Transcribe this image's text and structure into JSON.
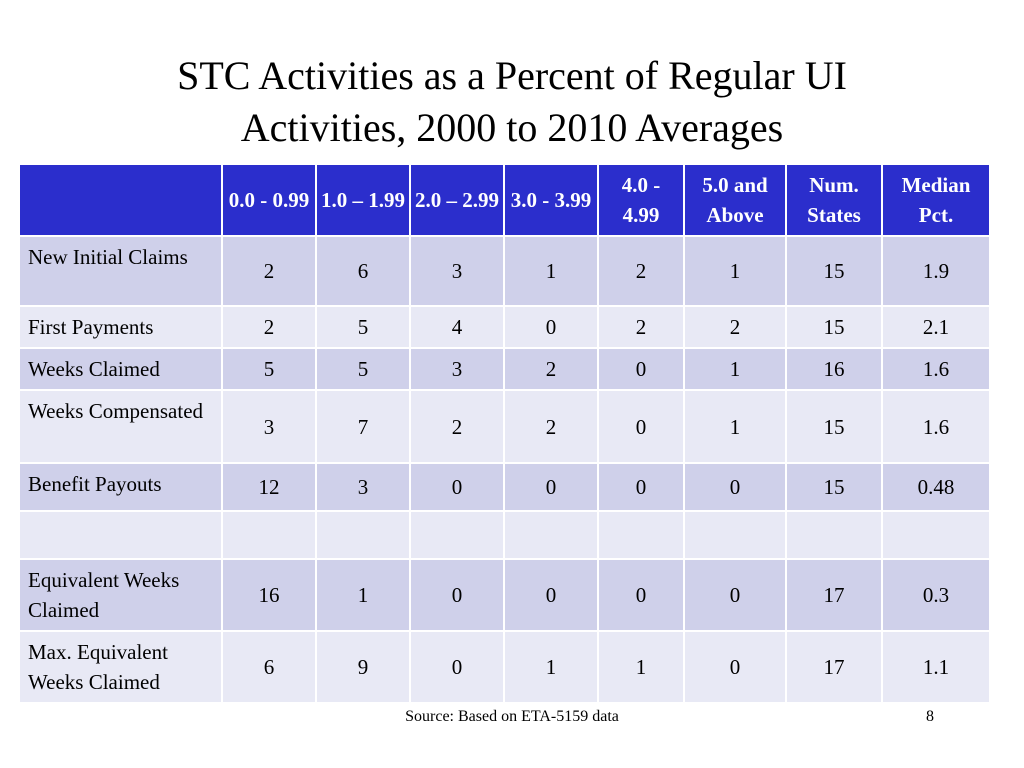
{
  "title": {
    "line1": "STC Activities as a Percent of Regular UI",
    "line2": "Activities, 2000 to 2010 Averages"
  },
  "table": {
    "headers": [
      "",
      "0.0 - 0.99",
      "1.0 – 1.99",
      "2.0 – 2.99",
      "3.0 - 3.99",
      "4.0 - 4.99",
      "5.0 and Above",
      "Num. States",
      "Median Pct."
    ],
    "rows": [
      {
        "label": "New Initial Claims",
        "values": [
          "2",
          "6",
          "3",
          "1",
          "2",
          "1",
          "15",
          "1.9"
        ]
      },
      {
        "label": "First Payments",
        "values": [
          "2",
          "5",
          "4",
          "0",
          "2",
          "2",
          "15",
          "2.1"
        ]
      },
      {
        "label": "Weeks Claimed",
        "values": [
          "5",
          "5",
          "3",
          "2",
          "0",
          "1",
          "16",
          "1.6"
        ]
      },
      {
        "label": "Weeks Compensated",
        "values": [
          "3",
          "7",
          "2",
          "2",
          "0",
          "1",
          "15",
          "1.6"
        ]
      },
      {
        "label": "Benefit Payouts",
        "values": [
          "12",
          "3",
          "0",
          "0",
          "0",
          "0",
          "15",
          "0.48"
        ]
      },
      {
        "label": "",
        "values": [
          "",
          "",
          "",
          "",
          "",
          "",
          "",
          ""
        ]
      },
      {
        "label": "Equivalent Weeks Claimed",
        "values": [
          "16",
          "1",
          "0",
          "0",
          "0",
          "0",
          "17",
          "0.3"
        ]
      },
      {
        "label": "Max. Equivalent Weeks Claimed",
        "values": [
          "6",
          "9",
          "0",
          "1",
          "1",
          "0",
          "17",
          "1.1"
        ]
      }
    ]
  },
  "colors": {
    "header_bg": "#2b2ecc",
    "row_dark": "#cfd0ea",
    "row_light": "#e8e9f5"
  },
  "footer": {
    "source": "Source: Based on ETA-5159 data",
    "page_number": "8"
  }
}
